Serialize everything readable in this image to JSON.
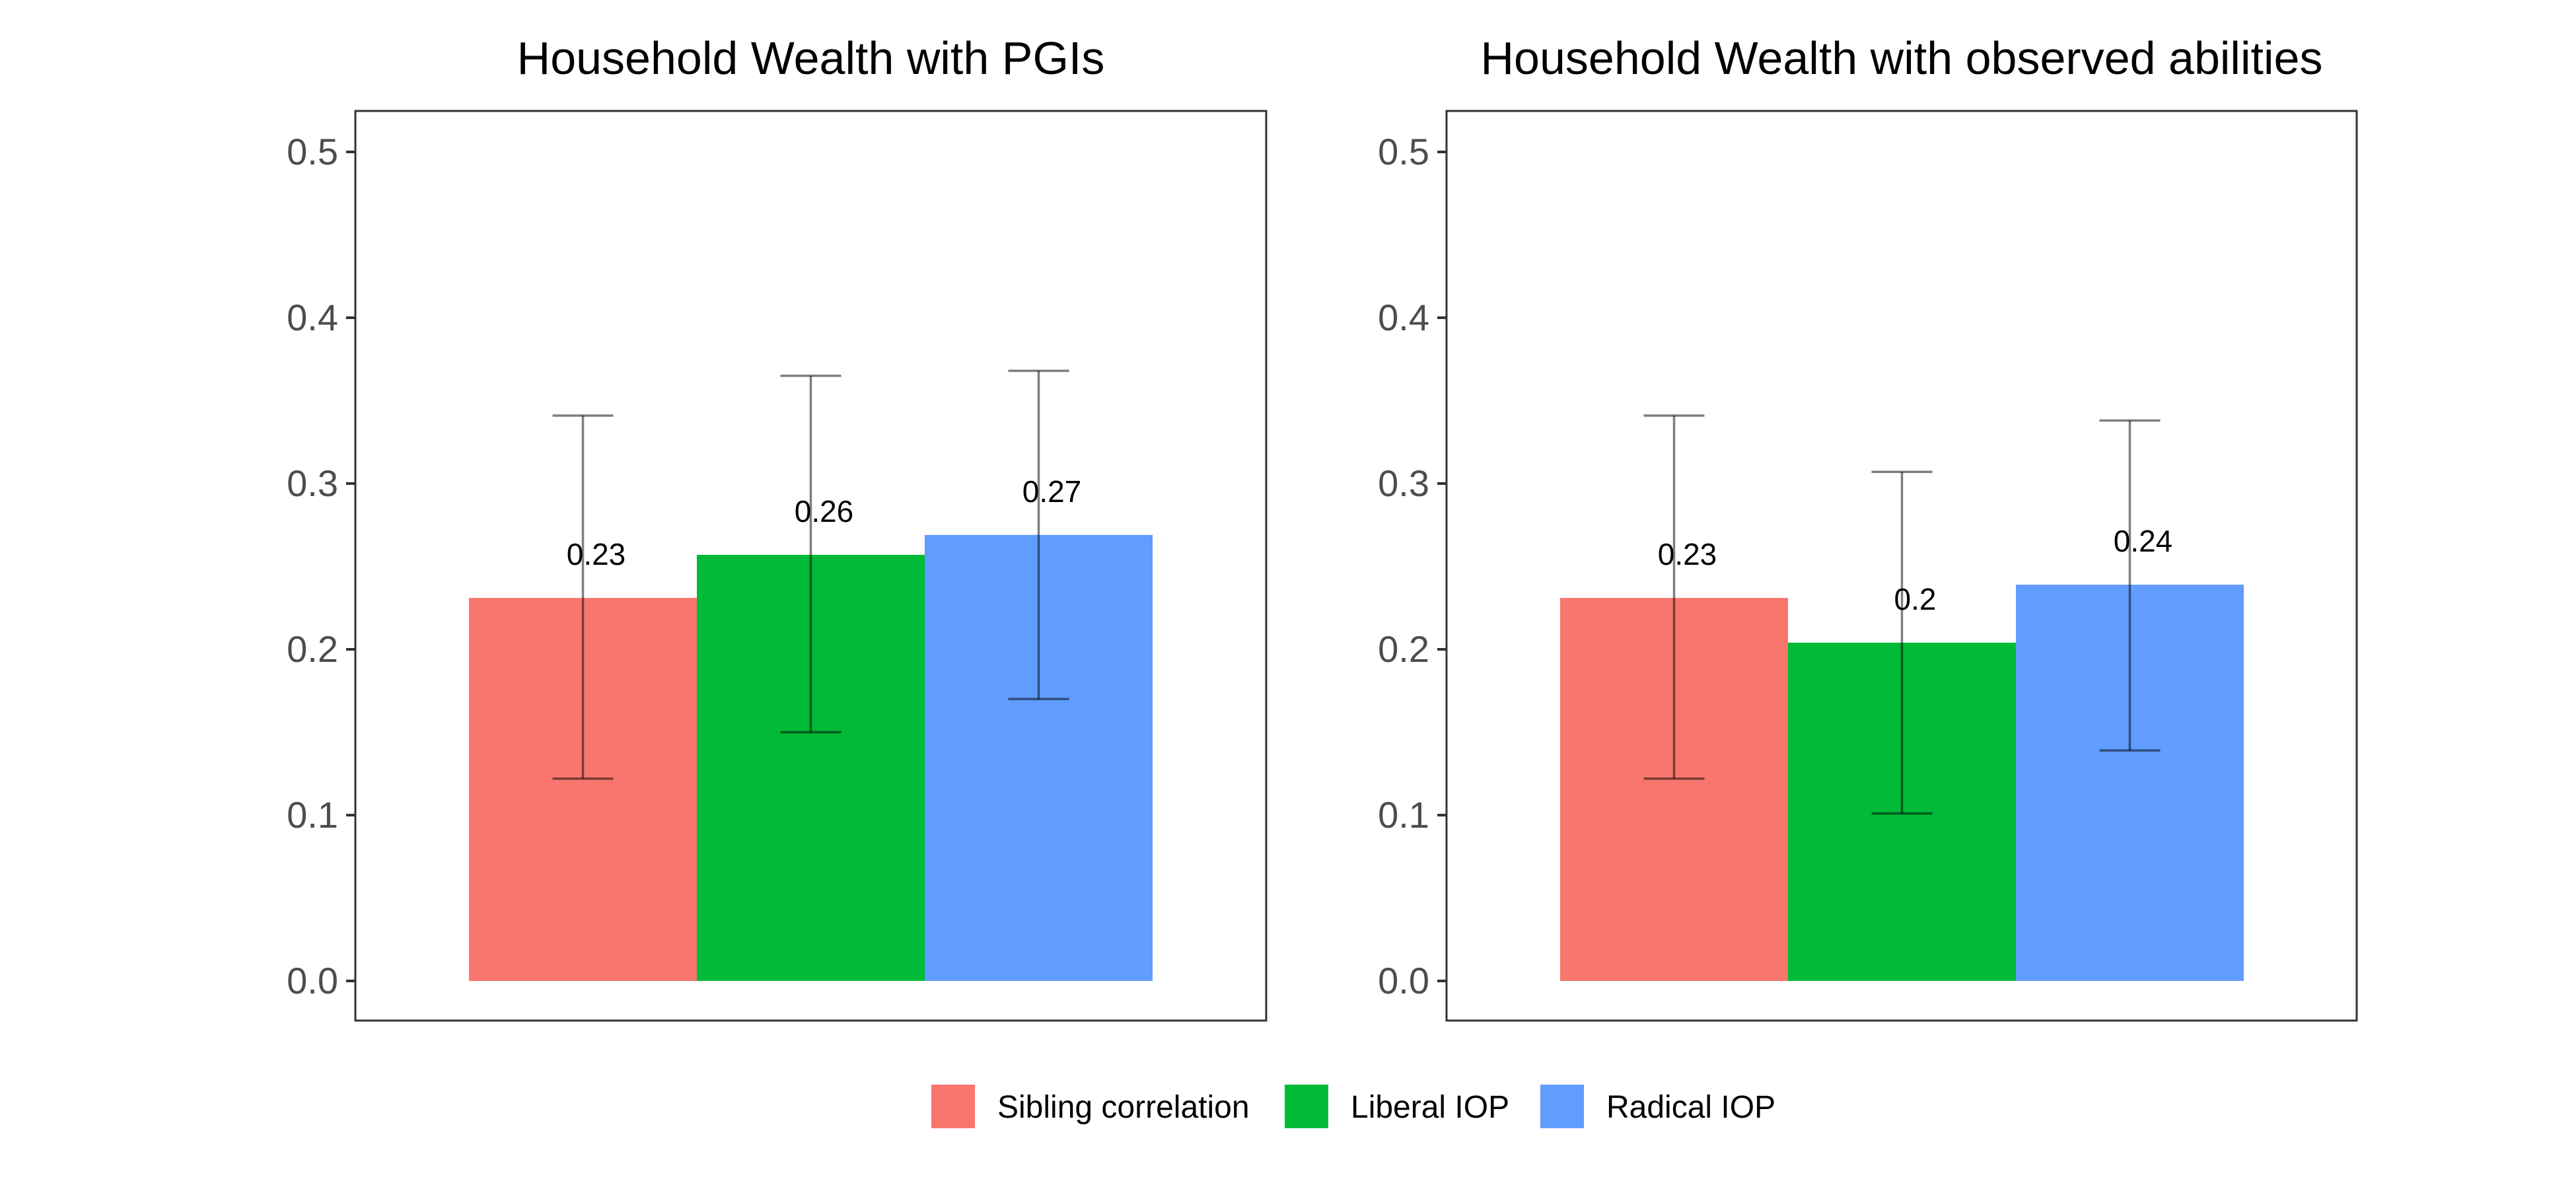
{
  "chart_data": [
    {
      "type": "bar",
      "title": "Household Wealth with PGIs",
      "xlabel": "",
      "ylabel": "",
      "ylim": [
        0,
        0.5
      ],
      "yticks": [
        "0.0",
        "0.1",
        "0.2",
        "0.3",
        "0.4",
        "0.5"
      ],
      "grid": false,
      "categories": [
        "Sibling correlation",
        "Liberal IOP",
        "Radical IOP"
      ],
      "values": [
        0.231,
        0.257,
        0.269
      ],
      "labels": [
        "0.23",
        "0.26",
        "0.27"
      ],
      "error_low": [
        0.122,
        0.15,
        0.17
      ],
      "error_high": [
        0.341,
        0.365,
        0.368
      ]
    },
    {
      "type": "bar",
      "title": "Household Wealth with observed abilities",
      "xlabel": "",
      "ylabel": "",
      "ylim": [
        0,
        0.5
      ],
      "yticks": [
        "0.0",
        "0.1",
        "0.2",
        "0.3",
        "0.4",
        "0.5"
      ],
      "grid": false,
      "categories": [
        "Sibling correlation",
        "Liberal IOP",
        "Radical IOP"
      ],
      "values": [
        0.231,
        0.204,
        0.239
      ],
      "labels": [
        "0.23",
        "0.2",
        "0.24"
      ],
      "error_low": [
        0.122,
        0.101,
        0.139
      ],
      "error_high": [
        0.341,
        0.307,
        0.338
      ]
    }
  ],
  "legend": {
    "placement": "bottom",
    "items": [
      {
        "label": "Sibling correlation",
        "color": "#F8766D"
      },
      {
        "label": "Liberal IOP",
        "color": "#00BA38"
      },
      {
        "label": "Radical IOP",
        "color": "#619CFF"
      }
    ]
  }
}
